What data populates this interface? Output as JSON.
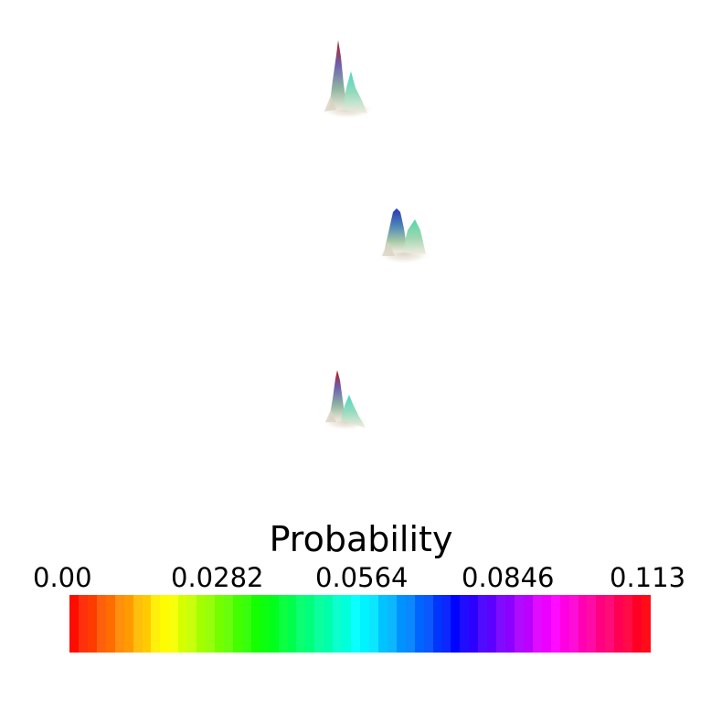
{
  "plot": {
    "peaks": [
      {
        "name": "peak-top",
        "max_value": 0.113
      },
      {
        "name": "peak-middle",
        "max_value": 0.088
      },
      {
        "name": "peak-bottom",
        "max_value": 0.113
      }
    ]
  },
  "legend": {
    "title": "Probability",
    "ticks": [
      "0.00",
      "0.0282",
      "0.0564",
      "0.0846",
      "0.113"
    ],
    "range": [
      0.0,
      0.113
    ],
    "segments": 64,
    "colormap": [
      "#ff0000",
      "#ffff00",
      "#00ff00",
      "#00ffff",
      "#0000ff",
      "#ff00ff",
      "#ff0000"
    ]
  }
}
